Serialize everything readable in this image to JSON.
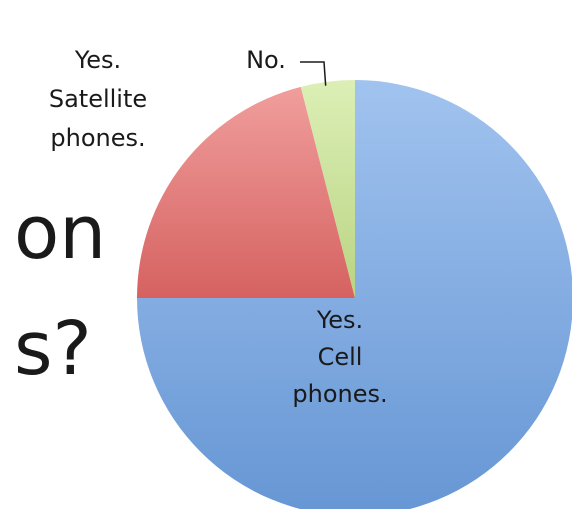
{
  "background_text": [
    "on",
    "s?"
  ],
  "chart_data": {
    "type": "pie",
    "title": "",
    "legend": "none",
    "slices": [
      {
        "label": [
          "Yes.",
          "Cell",
          "phones."
        ],
        "value": 75,
        "color": "#6fa3e6"
      },
      {
        "label": [
          "Yes.",
          "Satellite",
          "phones."
        ],
        "value": 21,
        "color": "#e86a68"
      },
      {
        "label": [
          "No."
        ],
        "value": 4,
        "color": "#c9e68e"
      }
    ]
  }
}
